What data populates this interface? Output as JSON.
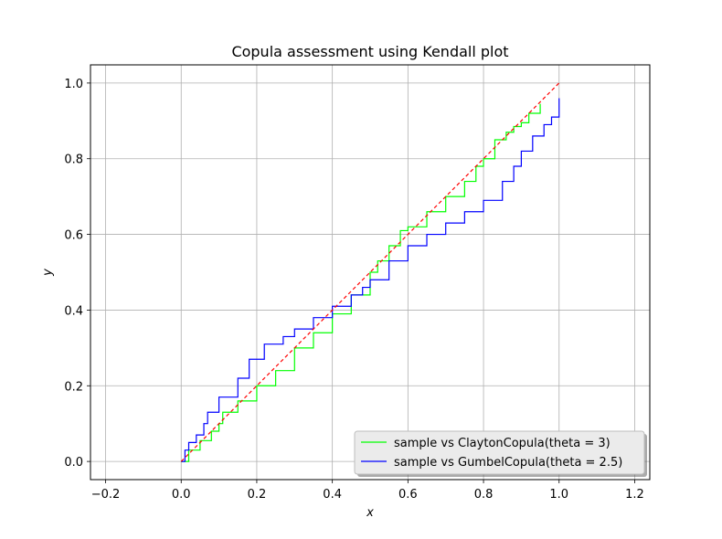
{
  "chart_data": {
    "type": "line",
    "title": "Copula assessment using Kendall plot",
    "xlabel": "x",
    "ylabel": "y",
    "xlim": [
      -0.24,
      1.24
    ],
    "ylim": [
      -0.048,
      1.048
    ],
    "xticks": [
      "−0.2",
      "0.0",
      "0.2",
      "0.4",
      "0.6",
      "0.8",
      "1.0",
      "1.2"
    ],
    "xtick_values": [
      -0.2,
      0.0,
      0.2,
      0.4,
      0.6,
      0.8,
      1.0,
      1.2
    ],
    "yticks": [
      "0.0",
      "0.2",
      "0.4",
      "0.6",
      "0.8",
      "1.0"
    ],
    "ytick_values": [
      0.0,
      0.2,
      0.4,
      0.6,
      0.8,
      1.0
    ],
    "grid": true,
    "legend_position": "lower-right",
    "series": [
      {
        "name": "sample vs ClaytonCopula(theta = 3)",
        "color": "#00ff00",
        "style": "solid",
        "x": [
          0.0,
          0.02,
          0.05,
          0.08,
          0.1,
          0.11,
          0.15,
          0.2,
          0.25,
          0.3,
          0.35,
          0.4,
          0.45,
          0.5,
          0.52,
          0.55,
          0.58,
          0.6,
          0.65,
          0.7,
          0.75,
          0.78,
          0.8,
          0.83,
          0.86,
          0.88,
          0.9,
          0.92,
          0.95
        ],
        "y": [
          0.0,
          0.03,
          0.055,
          0.08,
          0.1,
          0.13,
          0.16,
          0.2,
          0.24,
          0.3,
          0.34,
          0.39,
          0.44,
          0.5,
          0.53,
          0.57,
          0.61,
          0.62,
          0.66,
          0.7,
          0.74,
          0.78,
          0.8,
          0.85,
          0.87,
          0.885,
          0.895,
          0.92,
          0.945
        ]
      },
      {
        "name": "sample vs GumbelCopula(theta = 2.5)",
        "color": "#0000ff",
        "style": "solid",
        "x": [
          0.0,
          0.01,
          0.02,
          0.04,
          0.06,
          0.07,
          0.1,
          0.15,
          0.18,
          0.22,
          0.27,
          0.3,
          0.35,
          0.4,
          0.45,
          0.48,
          0.5,
          0.55,
          0.6,
          0.65,
          0.7,
          0.75,
          0.8,
          0.85,
          0.88,
          0.9,
          0.93,
          0.96,
          0.98,
          1.0
        ],
        "y": [
          0.0,
          0.03,
          0.05,
          0.07,
          0.1,
          0.13,
          0.17,
          0.22,
          0.27,
          0.31,
          0.33,
          0.35,
          0.38,
          0.41,
          0.44,
          0.46,
          0.48,
          0.53,
          0.57,
          0.6,
          0.63,
          0.66,
          0.69,
          0.74,
          0.78,
          0.82,
          0.86,
          0.89,
          0.91,
          0.96
        ]
      },
      {
        "name": "",
        "color": "#ff0000",
        "style": "dashed",
        "x": [
          0.0,
          1.0
        ],
        "y": [
          0.0,
          1.0
        ]
      }
    ]
  }
}
